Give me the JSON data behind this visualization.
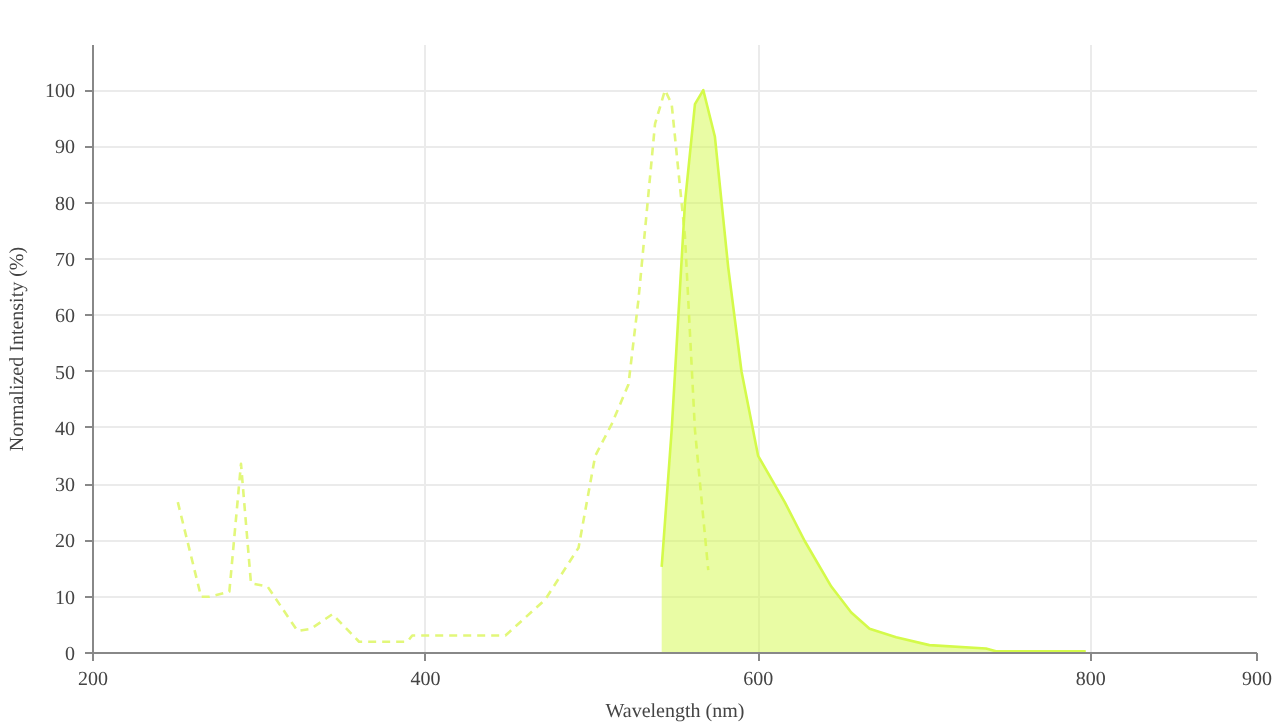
{
  "chart_data": {
    "type": "line",
    "xlabel": "Wavelength (nm)",
    "ylabel": "Normalized Intensity (%)",
    "xlim": [
      200,
      900
    ],
    "ylim": [
      0,
      108
    ],
    "xticks": [
      200,
      400,
      600,
      800,
      900
    ],
    "yticks": [
      0,
      10,
      20,
      30,
      40,
      50,
      60,
      70,
      80,
      90,
      100
    ],
    "grid": true,
    "series": [
      {
        "line_style": "dashed",
        "color": "#e2f77a",
        "x": [
          251,
          265,
          270,
          282,
          289,
          295,
          305,
          323,
          331,
          344,
          360,
          389,
          392,
          448,
          472,
          492,
          502,
          512,
          522,
          528,
          538,
          544,
          548,
          556,
          562,
          570
        ],
        "values": [
          26.8,
          10,
          10,
          10.9,
          33.6,
          12.4,
          11.8,
          3.9,
          4.3,
          6.9,
          2,
          2,
          3.1,
          3.1,
          9.5,
          18.7,
          35,
          40.7,
          47.7,
          62.7,
          94,
          100,
          97.5,
          74,
          39.6,
          14.7
        ]
      },
      {
        "type": "area",
        "line_style": "solid",
        "color": "#d4fa4a",
        "x": [
          542,
          548,
          556,
          562,
          567,
          574,
          582,
          590,
          600,
          616,
          628,
          644,
          656,
          667,
          683,
          703,
          737,
          743,
          797
        ],
        "values": [
          15.3,
          39.6,
          80,
          97.5,
          100,
          91.7,
          68.5,
          50,
          35,
          26.8,
          19.9,
          11.8,
          7.2,
          4.3,
          2.8,
          1.4,
          0.8,
          0.3,
          0.3
        ]
      }
    ]
  }
}
